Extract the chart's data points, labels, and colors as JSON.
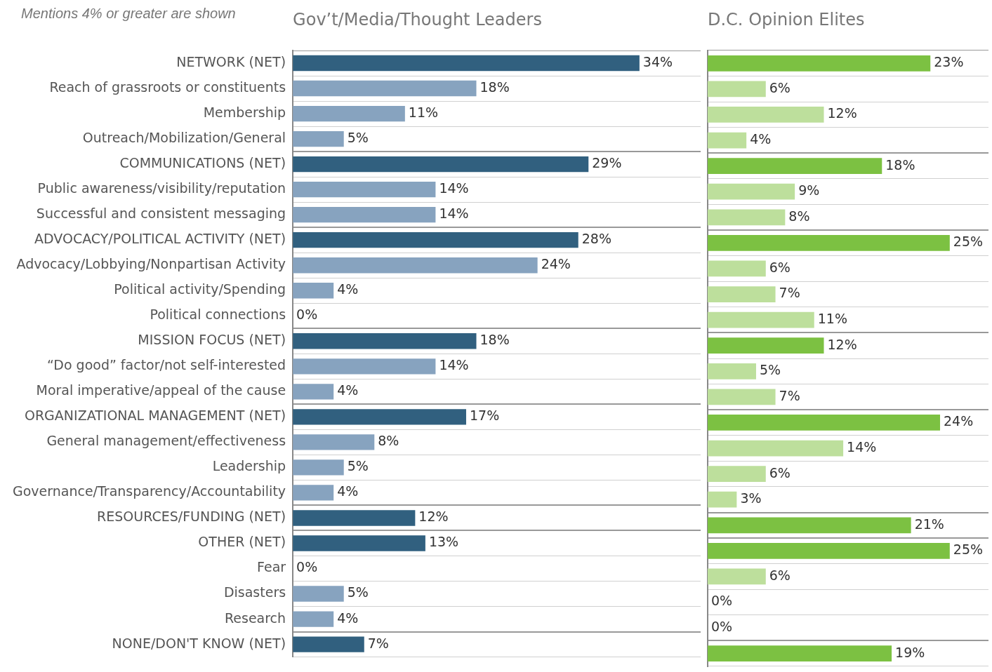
{
  "chart_data": [
    {
      "type": "bar",
      "orientation": "horizontal",
      "title": "Gov’t/Media/Thought Leaders",
      "annotations": [
        "Mentions 4% or greater are shown"
      ],
      "categories": [
        "NETWORK (NET)",
        "Reach of grassroots or constituents",
        "Membership",
        "Outreach/Mobilization/General",
        "COMMUNICATIONS (NET)",
        "Public awareness/visibility/reputation",
        "Successful and consistent messaging",
        "ADVOCACY/POLITICAL ACTIVITY (NET)",
        "Advocacy/Lobbying/Nonpartisan Activity",
        "Political activity/Spending",
        "Political connections",
        "MISSION FOCUS (NET)",
        "“Do good” factor/not self-interested",
        "Moral imperative/appeal of the cause",
        "ORGANIZATIONAL MANAGEMENT (NET)",
        "General management/effectiveness",
        "Leadership",
        "Governance/Transparency/Accountability",
        "RESOURCES/FUNDING (NET)",
        "OTHER (NET)",
        "Fear",
        "Disasters",
        "Research",
        "NONE/DON'T KNOW (NET)"
      ],
      "values": [
        34,
        18,
        11,
        5,
        29,
        14,
        14,
        28,
        24,
        4,
        0,
        18,
        14,
        4,
        17,
        8,
        5,
        4,
        12,
        13,
        0,
        5,
        4,
        7
      ],
      "value_labels": [
        "34%",
        "18%",
        "11%",
        "5%",
        "29%",
        "14%",
        "14%",
        "28%",
        "24%",
        "4%",
        "0%",
        "18%",
        "14%",
        "4%",
        "17%",
        "8%",
        "5%",
        "4%",
        "12%",
        "13%",
        "0%",
        "5%",
        "4%",
        "7%"
      ],
      "colors": [
        "#31607f",
        "#87a3bf",
        "#87a3bf",
        "#87a3bf",
        "#31607f",
        "#87a3bf",
        "#87a3bf",
        "#31607f",
        "#87a3bf",
        "#87a3bf",
        "#87a3bf",
        "#31607f",
        "#87a3bf",
        "#87a3bf",
        "#31607f",
        "#87a3bf",
        "#87a3bf",
        "#87a3bf",
        "#31607f",
        "#31607f",
        "#87a3bf",
        "#87a3bf",
        "#87a3bf",
        "#31607f"
      ],
      "xlim": [
        0,
        40
      ],
      "grid": "y",
      "legend": false,
      "tick_labels": "y"
    },
    {
      "type": "bar",
      "orientation": "horizontal",
      "title": "D.C. Opinion Elites",
      "categories": [
        null,
        null,
        null,
        null,
        null,
        null,
        null,
        null,
        null,
        null,
        null,
        null,
        null,
        null,
        null,
        null,
        null,
        null,
        null,
        null,
        null,
        null,
        null,
        null
      ],
      "values": [
        23,
        6,
        12,
        4,
        18,
        9,
        8,
        25,
        6,
        7,
        11,
        12,
        5,
        7,
        24,
        14,
        6,
        3,
        21,
        25,
        6,
        0,
        0,
        19
      ],
      "value_labels": [
        "23%",
        "6%",
        "12%",
        "4%",
        "18%",
        "9%",
        "8%",
        "25%",
        "6%",
        "7%",
        "11%",
        "12%",
        "5%",
        "7%",
        "24%",
        "14%",
        "6%",
        "3%",
        "21%",
        "25%",
        "6%",
        "0%",
        "0%",
        "19%"
      ],
      "colors": [
        "#7cc142",
        "#bddf9c",
        "#bddf9c",
        "#bddf9c",
        "#7cc142",
        "#bddf9c",
        "#bddf9c",
        "#7cc142",
        "#bddf9c",
        "#bddf9c",
        "#bddf9c",
        "#7cc142",
        "#bddf9c",
        "#bddf9c",
        "#7cc142",
        "#bddf9c",
        "#bddf9c",
        "#bddf9c",
        "#7cc142",
        "#7cc142",
        "#bddf9c",
        "#bddf9c",
        "#bddf9c",
        "#7cc142"
      ],
      "xlim": [
        0,
        29
      ],
      "grid": "y",
      "legend": false,
      "tick_labels": false
    }
  ]
}
